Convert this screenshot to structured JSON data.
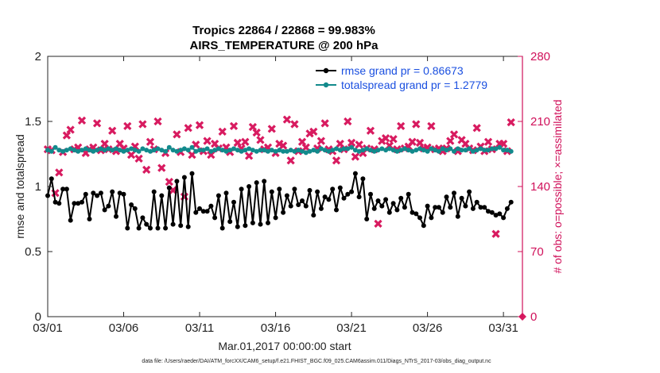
{
  "chart_data": {
    "type": "line",
    "title": "Tropics 22864 / 22868 = 99.983%",
    "subtitle": "AIRS_TEMPERATURE @ 200 hPa",
    "xlabel": "Mar.01,2017 00:00:00 start",
    "ylabel_left": "rmse and totalspread",
    "ylabel_right": "# of obs: o=possible; ×=assimilated",
    "footnote": "data file: /Users/raeder/DAI/ATM_forcXX/CAM6_setup/f.e21.FHIST_BGC.f09_025.CAM6assim.011/Diags_NTrS_2017-03/obs_diag_output.nc",
    "x_range": [
      1,
      32.25
    ],
    "x_ticks": [
      1,
      6,
      11,
      16,
      21,
      26,
      31
    ],
    "x_tick_labels": [
      "03/01",
      "03/06",
      "03/11",
      "03/16",
      "03/21",
      "03/26",
      "03/31"
    ],
    "ylim_left": [
      0,
      2
    ],
    "y_ticks_left": [
      0,
      0.5,
      1,
      1.5,
      2
    ],
    "y_tick_labels_left": [
      "0",
      "0.5",
      "1",
      "1.5",
      "2"
    ],
    "ylim_right": [
      0,
      280
    ],
    "y_ticks_right": [
      0,
      70,
      140,
      210,
      280
    ],
    "y_tick_labels_right": [
      "0",
      "70",
      "140",
      "210",
      "280"
    ],
    "legend_position": "top-right",
    "colors": {
      "rmse": "#000000",
      "spread": "#128a8c",
      "obs": "#d81b60",
      "right_axis": "#d0105a",
      "legend_text": "#1a4fe0"
    },
    "series": [
      {
        "name": "rmse grand pr = 0.86673",
        "axis": "left",
        "color": "#000000",
        "x_start": 1.0,
        "x_step": 0.25,
        "values": [
          0.93,
          1.06,
          0.88,
          0.87,
          0.98,
          0.98,
          0.74,
          0.87,
          0.87,
          0.88,
          0.94,
          0.75,
          0.95,
          0.93,
          0.95,
          0.82,
          0.85,
          0.96,
          0.77,
          0.95,
          0.94,
          0.68,
          0.86,
          0.83,
          0.68,
          0.76,
          0.71,
          0.68,
          0.96,
          0.68,
          0.93,
          0.68,
          0.99,
          0.71,
          1.04,
          0.7,
          1.07,
          0.69,
          1.1,
          0.8,
          0.83,
          0.81,
          0.81,
          0.85,
          0.76,
          0.93,
          0.68,
          0.95,
          0.73,
          0.88,
          0.69,
          0.98,
          0.7,
          1.0,
          0.72,
          1.03,
          0.71,
          1.04,
          0.72,
          0.96,
          0.76,
          0.98,
          0.8,
          0.93,
          0.85,
          0.98,
          0.86,
          0.89,
          0.85,
          0.97,
          0.78,
          0.96,
          0.83,
          0.92,
          0.9,
          0.98,
          0.82,
          0.99,
          0.91,
          0.94,
          0.96,
          1.1,
          0.92,
          1.06,
          0.75,
          0.94,
          0.83,
          0.89,
          0.85,
          0.9,
          0.8,
          0.87,
          0.82,
          0.91,
          0.84,
          0.94,
          0.8,
          0.79,
          0.76,
          0.7,
          0.85,
          0.76,
          0.84,
          0.84,
          0.8,
          0.92,
          0.84,
          0.95,
          0.77,
          0.91,
          0.85,
          0.96,
          0.83,
          0.88,
          0.84,
          0.84,
          0.81,
          0.8,
          0.78,
          0.79,
          0.76,
          0.83,
          0.88
        ]
      },
      {
        "name": "totalspread grand pr = 1.2779",
        "axis": "left",
        "color": "#128a8c",
        "x_start": 1.0,
        "x_step": 0.25,
        "values": [
          1.28,
          1.27,
          1.3,
          1.28,
          1.27,
          1.28,
          1.29,
          1.28,
          1.27,
          1.28,
          1.29,
          1.28,
          1.27,
          1.28,
          1.29,
          1.28,
          1.29,
          1.28,
          1.29,
          1.28,
          1.27,
          1.28,
          1.29,
          1.28,
          1.27,
          1.29,
          1.28,
          1.27,
          1.28,
          1.29,
          1.28,
          1.27,
          1.3,
          1.28,
          1.27,
          1.28,
          1.29,
          1.28,
          1.3,
          1.27,
          1.28,
          1.28,
          1.29,
          1.27,
          1.28,
          1.29,
          1.28,
          1.27,
          1.28,
          1.29,
          1.28,
          1.27,
          1.28,
          1.29,
          1.28,
          1.27,
          1.28,
          1.28,
          1.27,
          1.28,
          1.27,
          1.28,
          1.27,
          1.27,
          1.28,
          1.27,
          1.28,
          1.27,
          1.26,
          1.27,
          1.28,
          1.27,
          1.29,
          1.28,
          1.27,
          1.28,
          1.29,
          1.28,
          1.29,
          1.29,
          1.3,
          1.28,
          1.27,
          1.28,
          1.29,
          1.28,
          1.27,
          1.28,
          1.29,
          1.28,
          1.29,
          1.28,
          1.27,
          1.28,
          1.29,
          1.28,
          1.27,
          1.28,
          1.29,
          1.28,
          1.27,
          1.29,
          1.28,
          1.27,
          1.29,
          1.28,
          1.29,
          1.27,
          1.29,
          1.28,
          1.28,
          1.29,
          1.27,
          1.28,
          1.29,
          1.28,
          1.28,
          1.29,
          1.29,
          1.3,
          1.28,
          1.28,
          1.27
        ]
      },
      {
        "name": "# of obs assimilated",
        "axis": "right",
        "color": "#d81b60",
        "marker": "x",
        "x_start": 1.0,
        "x_step": 0.25,
        "values": [
          180,
          179,
          133,
          155,
          177,
          195,
          201,
          180,
          182,
          211,
          176,
          180,
          182,
          208,
          179,
          186,
          180,
          200,
          178,
          186,
          181,
          205,
          174,
          183,
          170,
          207,
          158,
          188,
          180,
          210,
          160,
          176,
          145,
          136,
          196,
          177,
          129,
          203,
          174,
          185,
          206,
          178,
          189,
          174,
          186,
          181,
          199,
          182,
          177,
          205,
          187,
          181,
          188,
          173,
          204,
          198,
          190,
          180,
          182,
          202,
          176,
          186,
          184,
          212,
          168,
          207,
          178,
          188,
          182,
          197,
          199,
          181,
          189,
          208,
          180,
          178,
          168,
          186,
          180,
          210,
          187,
          172,
          185,
          176,
          181,
          200,
          180,
          100,
          189,
          192,
          184,
          191,
          180,
          205,
          181,
          183,
          188,
          207,
          187,
          181,
          182,
          205,
          180,
          181,
          178,
          181,
          189,
          196,
          178,
          190,
          186,
          181,
          179,
          203,
          183,
          178,
          188,
          180,
          89,
          186,
          186,
          178,
          209
        ]
      },
      {
        "name": "# of obs possible",
        "axis": "right",
        "color": "#d81b60",
        "marker": "o",
        "x_start": 32.25,
        "x_step": 0.25,
        "values": [
          0
        ]
      }
    ]
  }
}
